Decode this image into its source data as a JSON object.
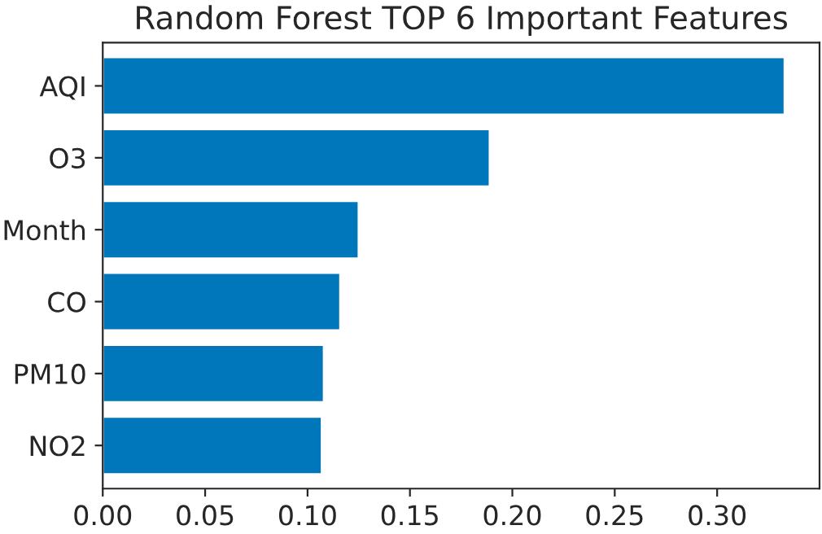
{
  "chart_data": {
    "type": "bar",
    "orientation": "horizontal",
    "title": "Random Forest TOP 6 Important Features",
    "categories": [
      "AQI",
      "O3",
      "Month",
      "CO",
      "PM10",
      "NO2"
    ],
    "values": [
      0.333,
      0.189,
      0.125,
      0.116,
      0.108,
      0.107
    ],
    "color": "#0077bb",
    "xlim": [
      0,
      0.35
    ],
    "xticks": [
      {
        "value": 0,
        "label": "0.00"
      },
      {
        "value": 0.05,
        "label": "0.05"
      },
      {
        "value": 0.1,
        "label": "0.10"
      },
      {
        "value": 0.15,
        "label": "0.15"
      },
      {
        "value": 0.2,
        "label": "0.20"
      },
      {
        "value": 0.25,
        "label": "0.25"
      },
      {
        "value": 0.3,
        "label": "0.30"
      }
    ],
    "grid": false,
    "legend": false
  }
}
